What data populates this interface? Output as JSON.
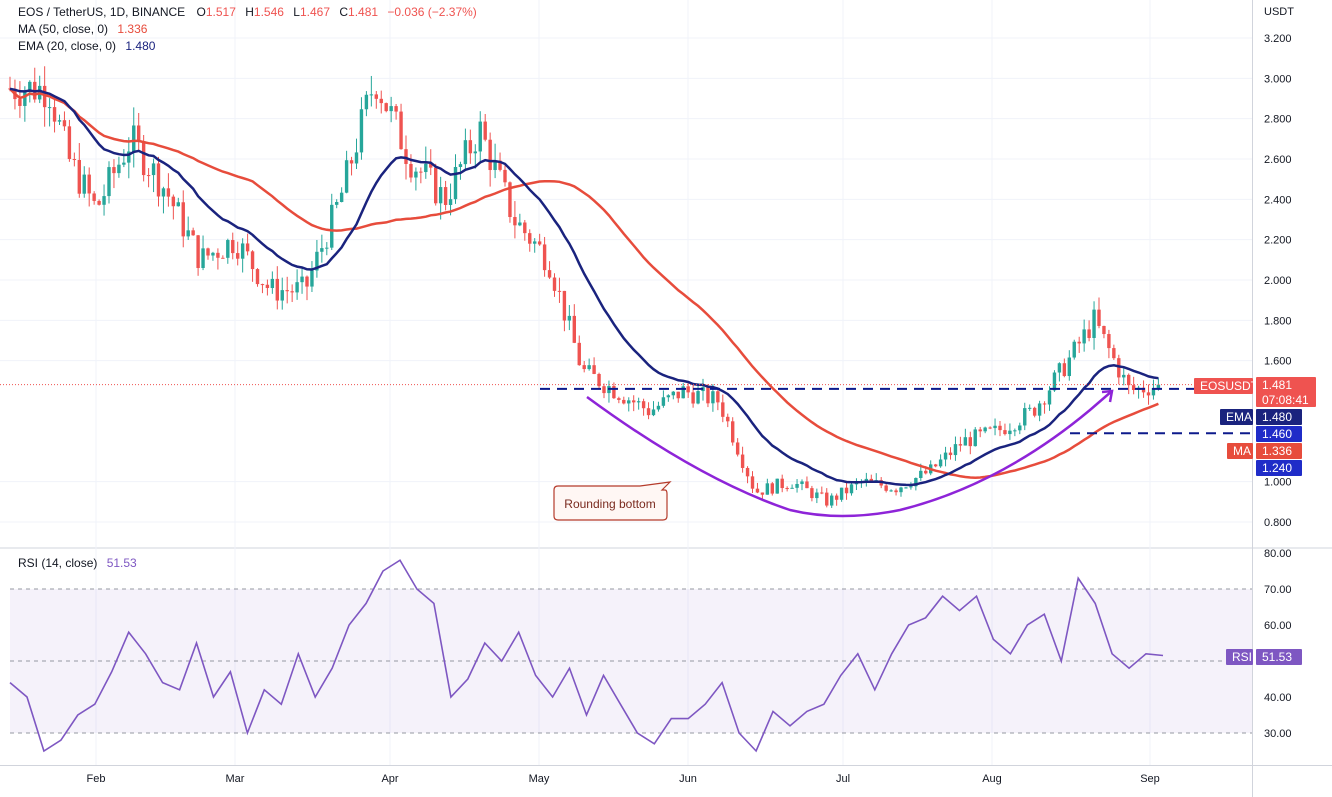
{
  "header": {
    "symbol": "EOS / TetherUS, 1D, BINANCE",
    "open_label": "O",
    "open": "1.517",
    "high_label": "H",
    "high": "1.546",
    "low_label": "L",
    "low": "1.467",
    "close_label": "C",
    "close": "1.481",
    "change": "−0.036 (−2.37%)",
    "ma_label": "MA (50, close, 0)",
    "ma_value": "1.336",
    "ema_label": "EMA (20, close, 0)",
    "ema_value": "1.480",
    "rsi_label": "RSI (14, close)",
    "rsi_value": "51.53"
  },
  "price_scale": {
    "unit": "USDT",
    "ticks": [
      "3.200",
      "3.000",
      "2.800",
      "2.600",
      "2.400",
      "2.200",
      "2.000",
      "1.800",
      "1.600",
      "1.000",
      "0.800"
    ]
  },
  "rsi_scale": {
    "ticks": [
      "80.00",
      "70.00",
      "60.00",
      "40.00",
      "30.00"
    ]
  },
  "time_axis": {
    "months": [
      "Feb",
      "Mar",
      "Apr",
      "May",
      "Jun",
      "Jul",
      "Aug",
      "Sep"
    ]
  },
  "badges": {
    "symbol_tag": "EOSUSDT",
    "price": "1.481",
    "countdown": "07:08:41",
    "ema_tag": "EMA",
    "ema_price": "1.480",
    "resistance": "1.460",
    "ma_tag": "MA",
    "ma_price": "1.336",
    "support": "1.240",
    "rsi_tag": "RSI",
    "rsi_price": "51.53"
  },
  "annotation": {
    "text": "Rounding bottom"
  },
  "colors": {
    "up": "#26a69a",
    "down": "#ef5350",
    "ema": "#1a237e",
    "ma": "#e74c3c",
    "rsi": "#7e57c2",
    "rounding": "#8e24d8",
    "level": "#0d1a8c"
  },
  "chart_data": {
    "type": "candlestick",
    "title": "EOS / TetherUS, 1D, BINANCE",
    "y_unit": "USDT",
    "ylim": [
      0.7,
      3.3
    ],
    "x_months": [
      "Feb",
      "Mar",
      "Apr",
      "May",
      "Jun",
      "Jul",
      "Aug",
      "Sep"
    ],
    "close_series_approx": [
      {
        "date": "Jan-20",
        "close": 2.95
      },
      {
        "date": "Jan-25",
        "close": 2.6
      },
      {
        "date": "Feb-01",
        "close": 2.35
      },
      {
        "date": "Feb-08",
        "close": 2.7
      },
      {
        "date": "Feb-15",
        "close": 2.45
      },
      {
        "date": "Feb-22",
        "close": 2.1
      },
      {
        "date": "Mar-01",
        "close": 2.2
      },
      {
        "date": "Mar-08",
        "close": 1.95
      },
      {
        "date": "Mar-15",
        "close": 1.95
      },
      {
        "date": "Mar-22",
        "close": 2.4
      },
      {
        "date": "Mar-29",
        "close": 3.0
      },
      {
        "date": "Apr-05",
        "close": 2.6
      },
      {
        "date": "Apr-12",
        "close": 2.4
      },
      {
        "date": "Apr-19",
        "close": 2.75
      },
      {
        "date": "Apr-26",
        "close": 2.3
      },
      {
        "date": "May-03",
        "close": 2.1
      },
      {
        "date": "May-10",
        "close": 1.55
      },
      {
        "date": "May-17",
        "close": 1.45
      },
      {
        "date": "May-24",
        "close": 1.35
      },
      {
        "date": "May-31",
        "close": 1.45
      },
      {
        "date": "Jun-07",
        "close": 1.4
      },
      {
        "date": "Jun-14",
        "close": 0.95
      },
      {
        "date": "Jun-21",
        "close": 1.0
      },
      {
        "date": "Jun-28",
        "close": 0.9
      },
      {
        "date": "Jul-05",
        "close": 1.0
      },
      {
        "date": "Jul-12",
        "close": 0.97
      },
      {
        "date": "Jul-19",
        "close": 1.05
      },
      {
        "date": "Jul-26",
        "close": 1.2
      },
      {
        "date": "Aug-02",
        "close": 1.25
      },
      {
        "date": "Aug-09",
        "close": 1.35
      },
      {
        "date": "Aug-16",
        "close": 1.6
      },
      {
        "date": "Aug-21",
        "close": 1.8
      },
      {
        "date": "Aug-28",
        "close": 1.45
      },
      {
        "date": "Sep-03",
        "close": 1.481
      }
    ],
    "ema20": {
      "current": 1.48
    },
    "ma50": {
      "current": 1.336
    },
    "levels": [
      {
        "name": "resistance",
        "value": 1.46
      },
      {
        "name": "support",
        "value": 1.24
      }
    ],
    "rsi": {
      "period": 14,
      "current": 51.53,
      "ylim": [
        20,
        82
      ],
      "bands": [
        30,
        70
      ],
      "mid": 50,
      "series_approx": [
        44,
        40,
        25,
        28,
        35,
        38,
        47,
        58,
        52,
        44,
        42,
        55,
        40,
        47,
        30,
        42,
        38,
        52,
        40,
        48,
        60,
        66,
        75,
        78,
        70,
        66,
        40,
        45,
        55,
        50,
        58,
        46,
        40,
        48,
        35,
        46,
        38,
        30,
        27,
        34,
        34,
        38,
        44,
        30,
        25,
        36,
        32,
        36,
        38,
        46,
        52,
        42,
        52,
        60,
        62,
        68,
        64,
        68,
        56,
        52,
        60,
        63,
        50,
        73,
        66,
        52,
        48,
        52,
        51.53
      ]
    }
  }
}
